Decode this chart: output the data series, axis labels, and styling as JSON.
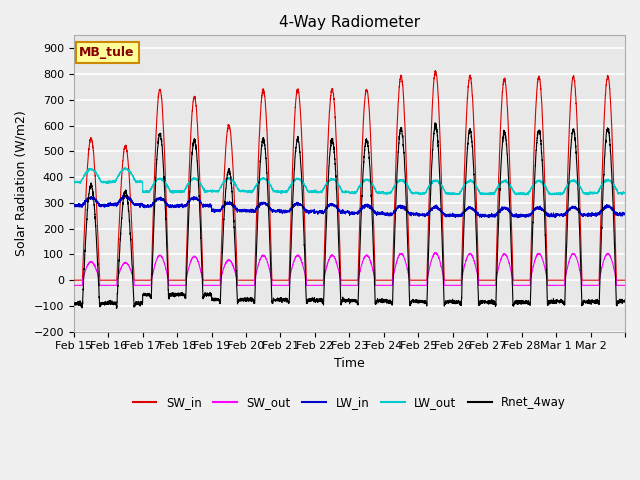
{
  "title": "4-Way Radiometer",
  "xlabel": "Time",
  "ylabel": "Solar Radiation (W/m2)",
  "ylim": [
    -200,
    950
  ],
  "yticks": [
    -200,
    -100,
    0,
    100,
    200,
    300,
    400,
    500,
    600,
    700,
    800,
    900
  ],
  "annotation": "MB_tule",
  "legend": [
    "SW_in",
    "SW_out",
    "LW_in",
    "LW_out",
    "Rnet_4way"
  ],
  "colors": {
    "SW_in": "#dd0000",
    "SW_out": "#ff00ff",
    "LW_in": "#0000cc",
    "LW_out": "#00cccc",
    "Rnet_4way": "#000000"
  },
  "n_days": 16,
  "tick_labels": [
    "Feb 15",
    "Feb 16",
    "Feb 17",
    "Feb 18",
    "Feb 19",
    "Feb 20",
    "Feb 21",
    "Feb 22",
    "Feb 23",
    "Feb 24",
    "Feb 25",
    "Feb 26",
    "Feb 27",
    "Feb 28",
    "Mar 1",
    "Mar 2",
    ""
  ],
  "background_color": "#e8e8e8",
  "grid_color": "#ffffff",
  "annotation_bg": "#ffff99",
  "annotation_border": "#cc8800"
}
